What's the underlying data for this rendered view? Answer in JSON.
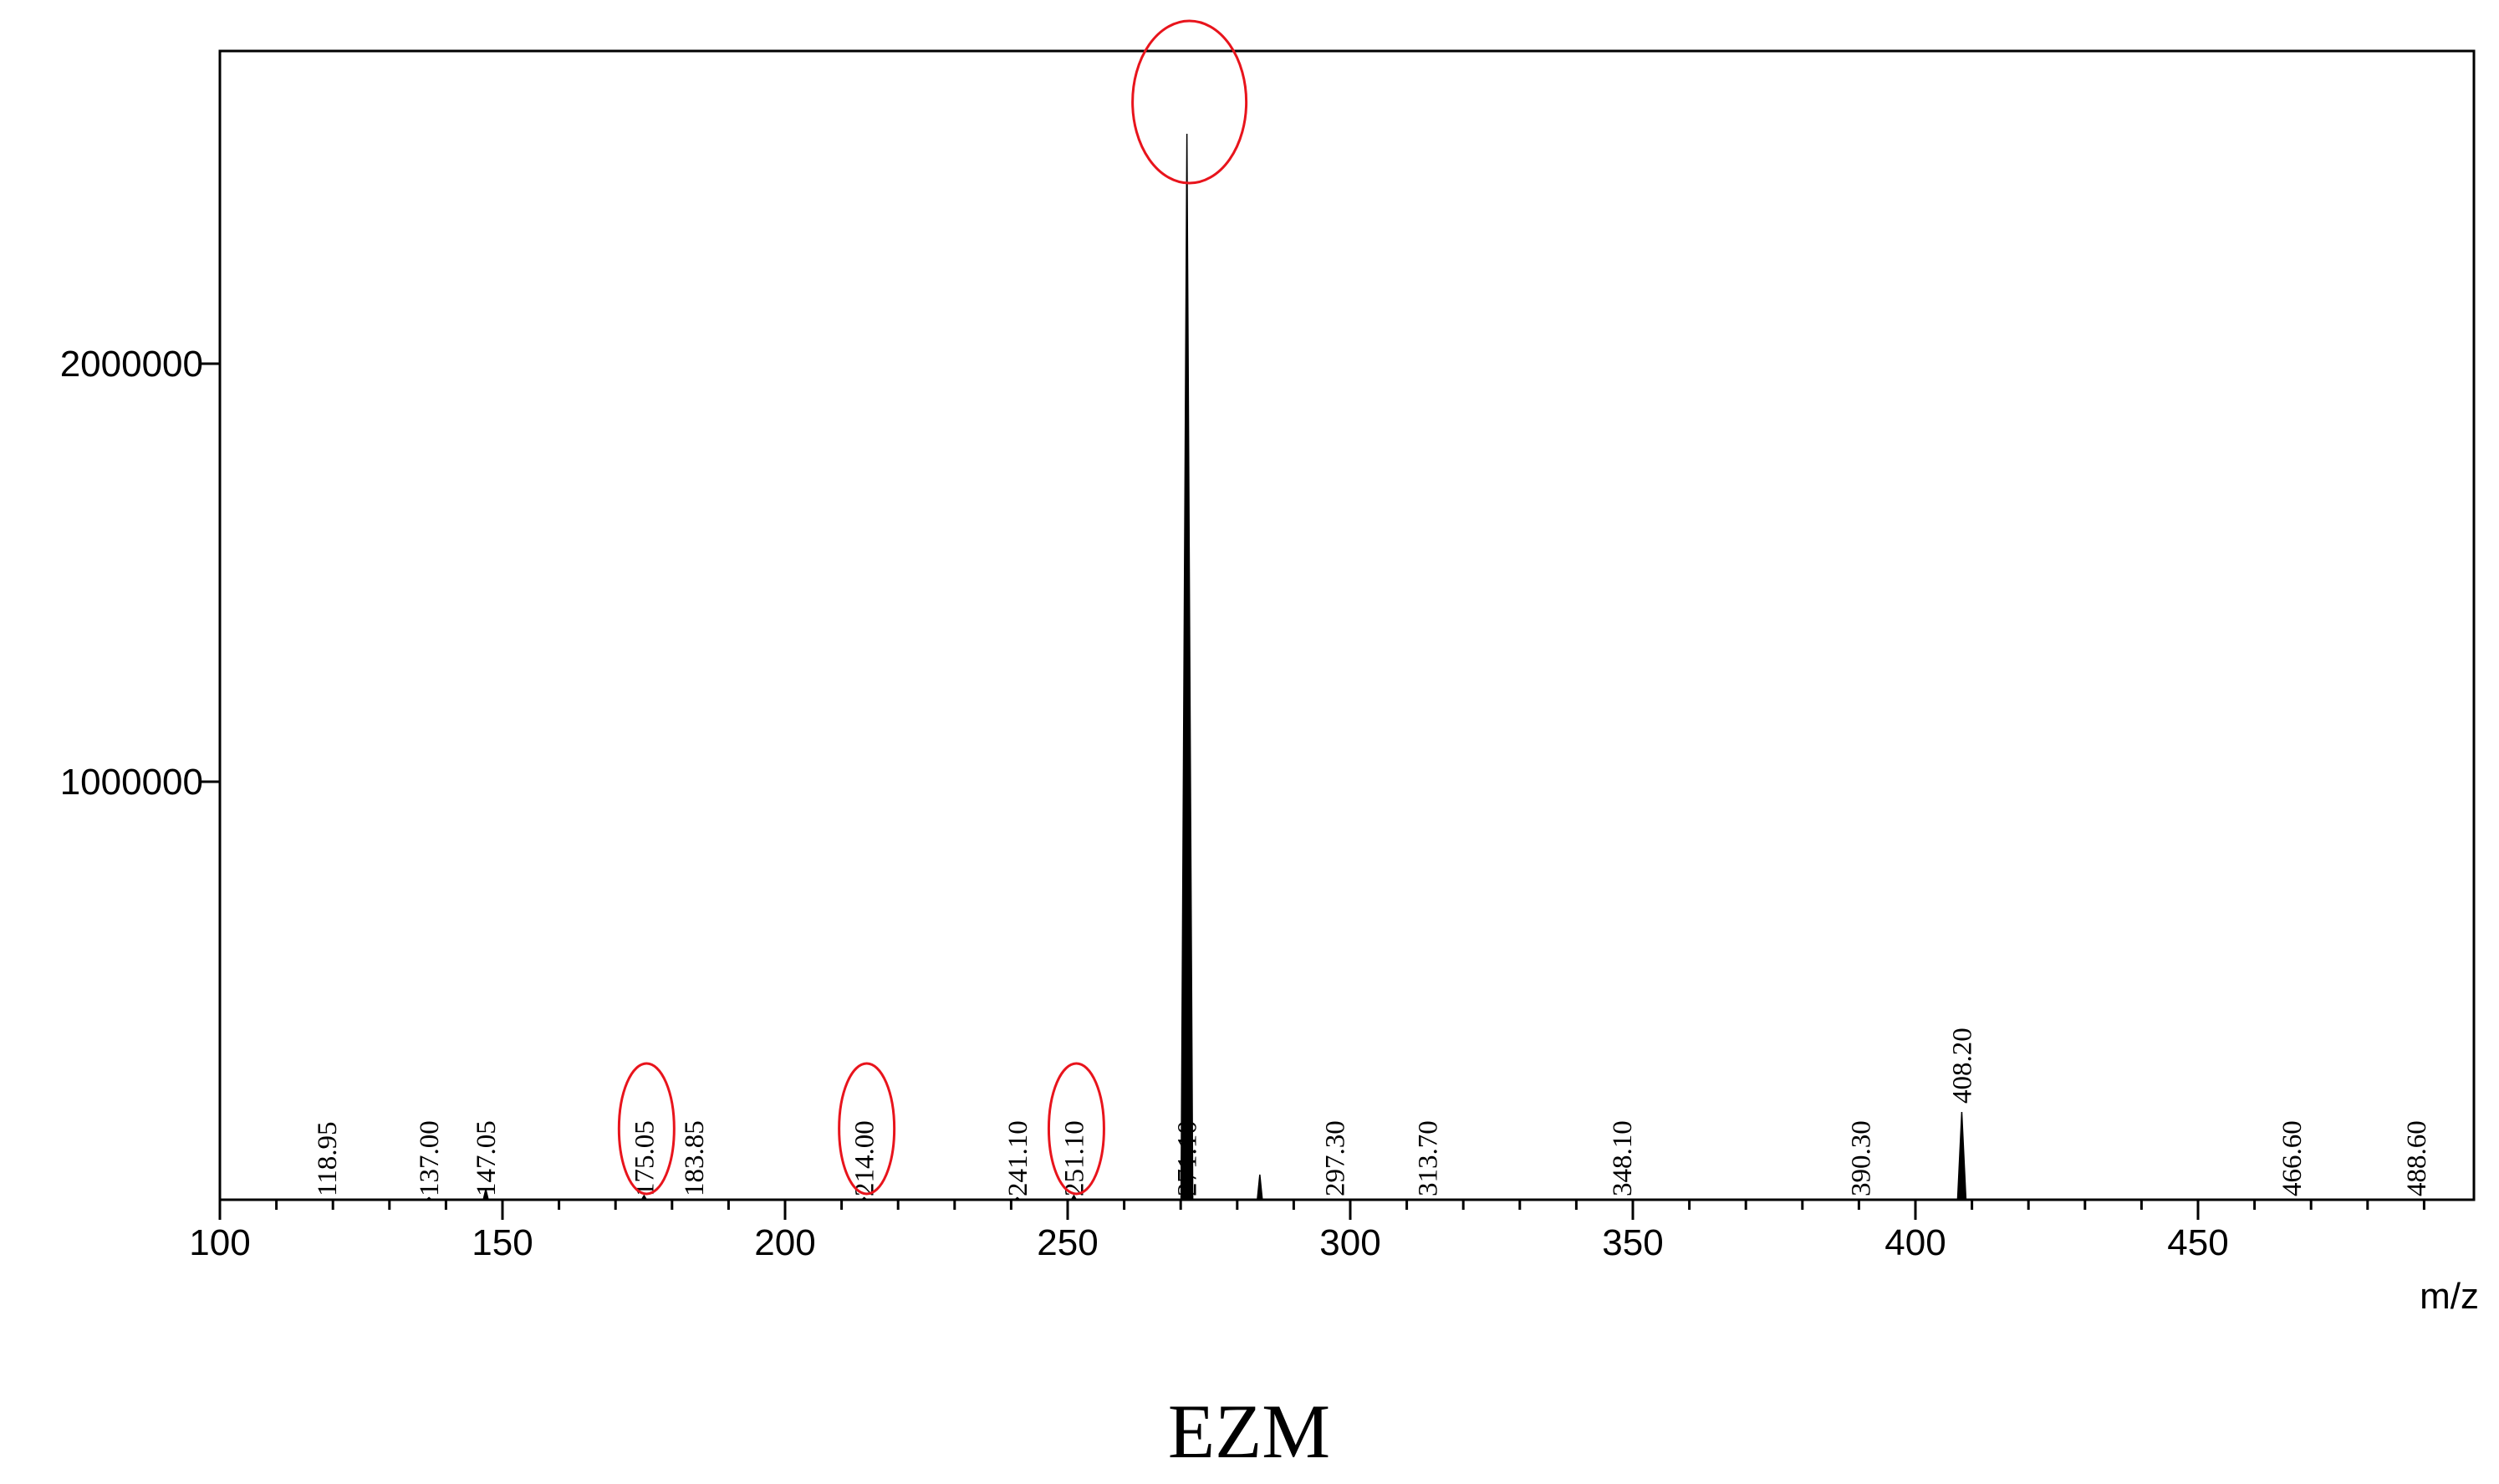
{
  "caption": "EZM",
  "chart_data": {
    "type": "line",
    "title": "",
    "xlabel": "m/z",
    "ylabel": "",
    "xlim": [
      100,
      500
    ],
    "ylim": [
      0,
      2750000
    ],
    "grid": false,
    "legend": "none",
    "x_ticks": [
      100,
      150,
      200,
      250,
      300,
      350,
      400,
      450
    ],
    "x_tick_labels": [
      "100",
      "150",
      "200",
      "250",
      "300",
      "350",
      "400",
      "450"
    ],
    "y_ticks": [
      1000000,
      2000000
    ],
    "y_tick_labels": [
      "1000000",
      "2000000"
    ],
    "peaks": [
      {
        "mz": 118.95,
        "label": "118.95",
        "intensity": 0
      },
      {
        "mz": 137.0,
        "label": "137.00",
        "intensity": 5000
      },
      {
        "mz": 147.05,
        "label": "147.05",
        "intensity": 25000
      },
      {
        "mz": 175.05,
        "label": "175.05",
        "intensity": 10000
      },
      {
        "mz": 183.85,
        "label": "183.85",
        "intensity": 0
      },
      {
        "mz": 214.0,
        "label": "214.00",
        "intensity": 5000
      },
      {
        "mz": 241.1,
        "label": "241.10",
        "intensity": 5000
      },
      {
        "mz": 251.1,
        "label": "251.10",
        "intensity": 10000
      },
      {
        "mz": 271.1,
        "label": "271.10",
        "intensity": 2550000
      },
      {
        "mz": 284.0,
        "label": "",
        "intensity": 60000
      },
      {
        "mz": 297.3,
        "label": "297.30",
        "intensity": 0
      },
      {
        "mz": 313.7,
        "label": "313.70",
        "intensity": 0
      },
      {
        "mz": 348.1,
        "label": "348.10",
        "intensity": 0
      },
      {
        "mz": 390.3,
        "label": "390.30",
        "intensity": 0
      },
      {
        "mz": 408.2,
        "label": "408.20",
        "intensity": 210000
      },
      {
        "mz": 466.6,
        "label": "466.60",
        "intensity": 0
      },
      {
        "mz": 488.6,
        "label": "488.60",
        "intensity": 0
      }
    ],
    "highlighted_peaks": [
      175.05,
      214.0,
      251.1,
      271.1
    ],
    "highlight_color": "#e8141c",
    "line_color": "#000000"
  }
}
